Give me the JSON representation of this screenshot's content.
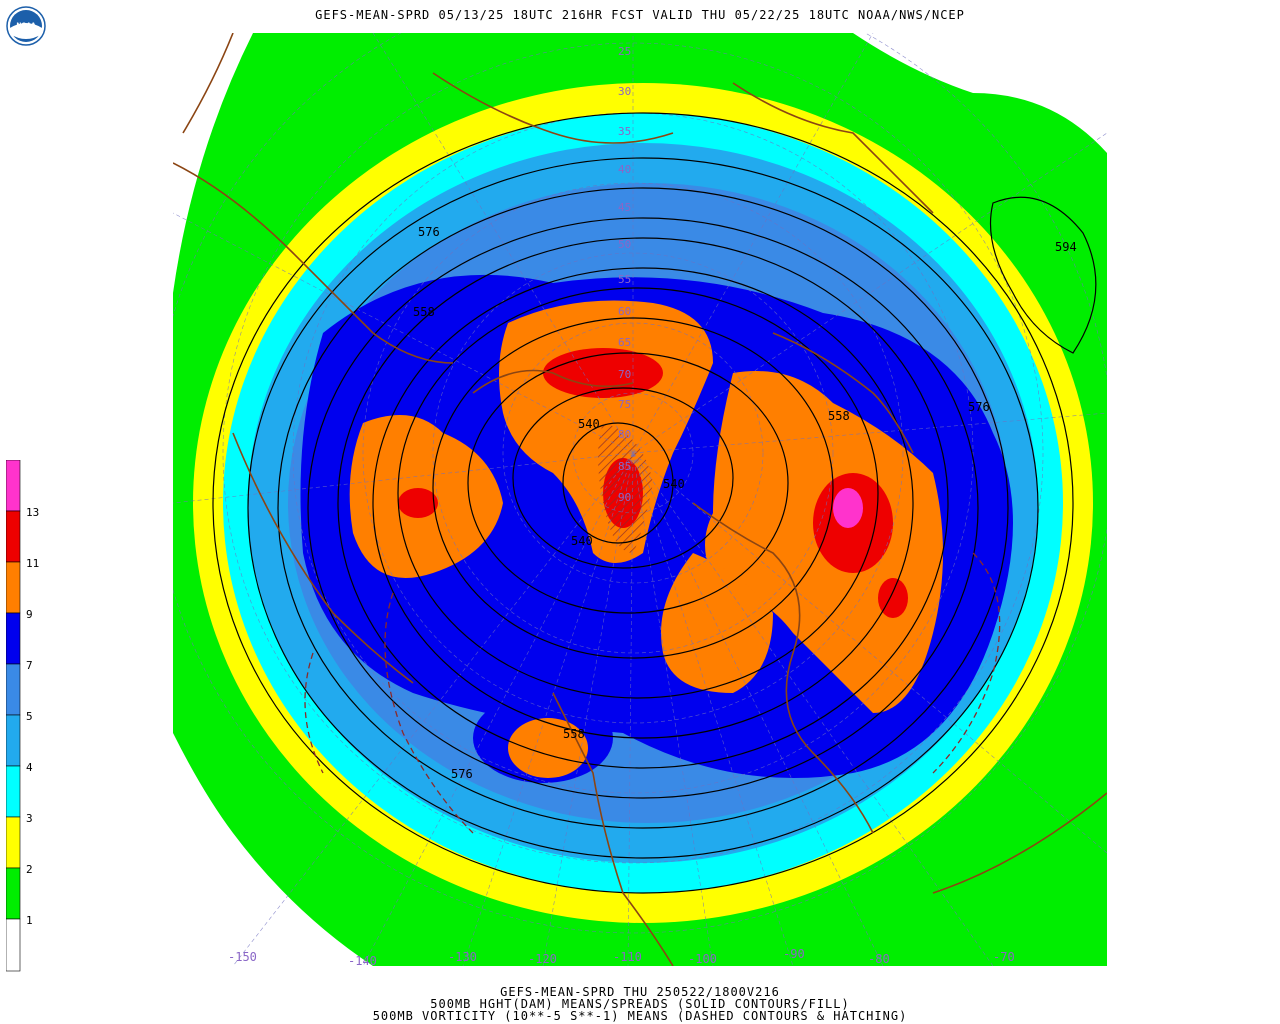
{
  "header": {
    "title": "GEFS-MEAN-SPRD 05/13/25 18UTC 216HR FCST VALID THU 05/22/25 18UTC NOAA/NWS/NCEP",
    "logo_text": "NOAA"
  },
  "footer": {
    "line1": "GEFS-MEAN-SPRD THU 250522/1800V216",
    "line2": "500MB HGHT(DAM) MEANS/SPREADS (SOLID CONTOURS/FILL)",
    "line3": "500MB VORTICITY (10**-5 S**-1) MEANS (DASHED CONTOURS & HATCHING)"
  },
  "colorbar": {
    "labels": [
      "1",
      "2",
      "3",
      "4",
      "5",
      "7",
      "9",
      "11",
      "13"
    ],
    "colors": [
      "#ffffff",
      "#00ee00",
      "#ffff00",
      "#00ffff",
      "#22aaee",
      "#3a8ae6",
      "#0000ee",
      "#ff7f00",
      "#ee0000",
      "#ff33cc"
    ]
  },
  "map": {
    "longitude_labels": [
      "-150",
      "-140",
      "-130",
      "-120",
      "-110",
      "-100",
      "-90",
      "-80",
      "-70"
    ],
    "latitude_labels": [
      "25",
      "30",
      "35",
      "40",
      "45",
      "50",
      "55",
      "60",
      "65",
      "70",
      "75",
      "80",
      "85",
      "90"
    ],
    "contour_labels": [
      "576",
      "558",
      "540",
      "558",
      "540",
      "594",
      "576",
      "558",
      "576",
      "558",
      "540"
    ]
  }
}
